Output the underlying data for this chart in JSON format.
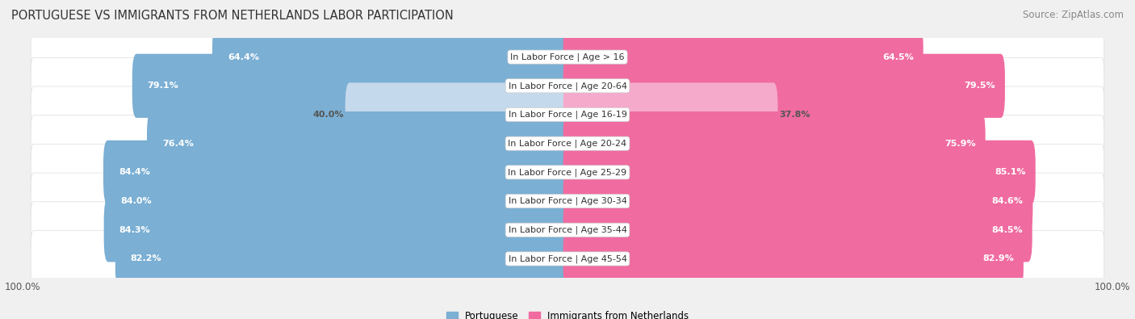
{
  "title": "PORTUGUESE VS IMMIGRANTS FROM NETHERLANDS LABOR PARTICIPATION",
  "source": "Source: ZipAtlas.com",
  "categories": [
    "In Labor Force | Age > 16",
    "In Labor Force | Age 20-64",
    "In Labor Force | Age 16-19",
    "In Labor Force | Age 20-24",
    "In Labor Force | Age 25-29",
    "In Labor Force | Age 30-34",
    "In Labor Force | Age 35-44",
    "In Labor Force | Age 45-54"
  ],
  "portuguese_values": [
    64.4,
    79.1,
    40.0,
    76.4,
    84.4,
    84.0,
    84.3,
    82.2
  ],
  "netherlands_values": [
    64.5,
    79.5,
    37.8,
    75.9,
    85.1,
    84.6,
    84.5,
    82.9
  ],
  "portuguese_color": "#7BAFD4",
  "portuguese_light_color": "#C5D9EC",
  "netherlands_color": "#F06BA0",
  "netherlands_light_color": "#F5AACB",
  "bg_color": "#F0F0F0",
  "row_bg_even": "#FFFFFF",
  "row_bg_odd": "#F7F7F7",
  "max_value": 100.0,
  "legend_portuguese": "Portuguese",
  "legend_netherlands": "Immigrants from Netherlands",
  "title_fontsize": 10.5,
  "source_fontsize": 8.5,
  "bar_label_fontsize": 8,
  "category_fontsize": 8,
  "legend_fontsize": 8.5,
  "axis_label_fontsize": 8.5
}
